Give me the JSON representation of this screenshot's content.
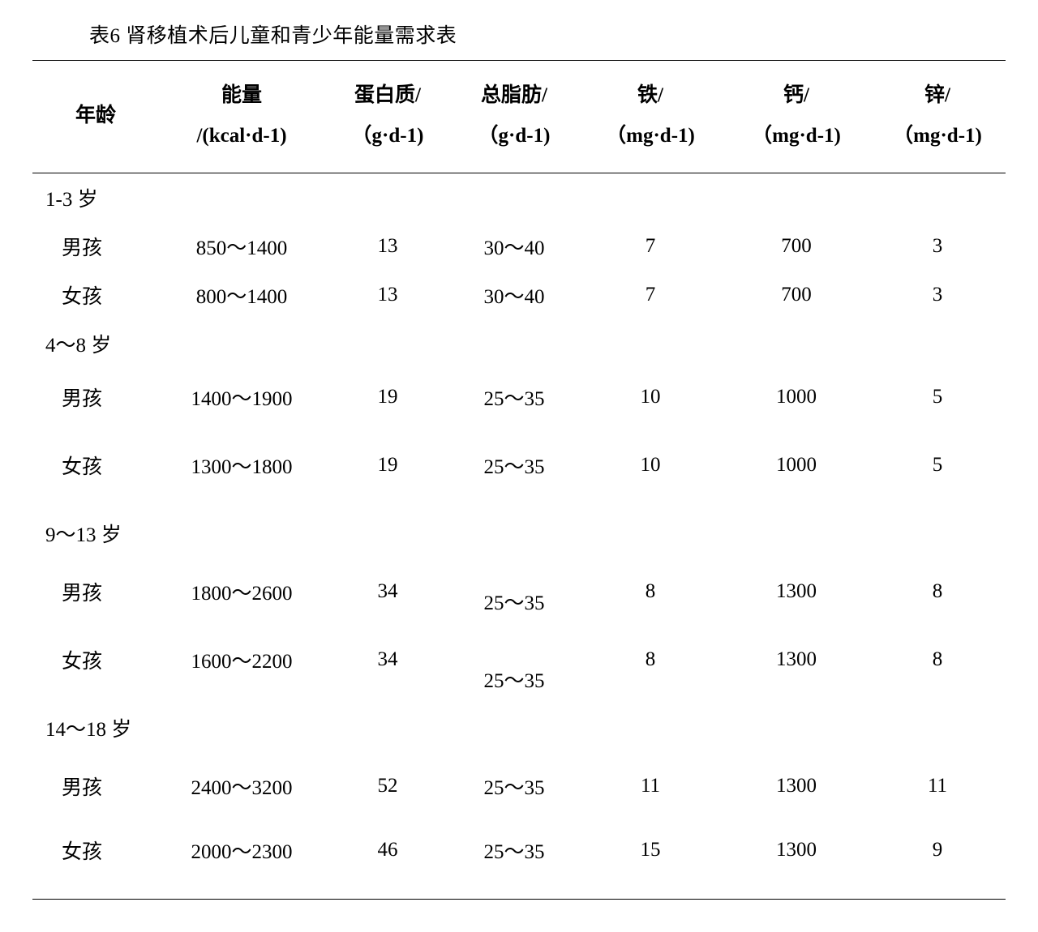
{
  "caption": "表6  肾移植术后儿童和青少年能量需求表",
  "columns": [
    {
      "line1": "年龄",
      "line2": "",
      "class": "c-age"
    },
    {
      "line1": "能量",
      "line2": "/(kcal·d-1)",
      "class": "c-energy"
    },
    {
      "line1": "蛋白质/",
      "line2": "（g·d-1)",
      "class": "c-prot"
    },
    {
      "line1": "总脂肪/",
      "line2": "（g·d-1)",
      "class": "c-fat"
    },
    {
      "line1": "铁/",
      "line2": "（mg·d-1)",
      "class": "c-fe"
    },
    {
      "line1": "钙/",
      "line2": "（mg·d-1)",
      "class": "c-ca"
    },
    {
      "line1": "锌/",
      "line2": "（mg·d-1)",
      "class": "c-zn"
    }
  ],
  "groups": [
    {
      "label": "1-3 岁",
      "groupRowClass": "",
      "rows": [
        {
          "age": "男孩",
          "energy": "850～1400",
          "protein": "13",
          "fat": "30～40",
          "fe": "7",
          "ca": "700",
          "zn": "3",
          "rowClass": "",
          "fatClass": ""
        },
        {
          "age": "女孩",
          "energy": "800～1400",
          "protein": "13",
          "fat": "30～40",
          "fe": "7",
          "ca": "700",
          "zn": "3",
          "rowClass": "",
          "fatClass": ""
        }
      ]
    },
    {
      "label": "4～8 岁",
      "groupRowClass": "",
      "rows": [
        {
          "age": "男孩",
          "energy": "1400～1900",
          "protein": "19",
          "fat": "25～35",
          "fe": "10",
          "ca": "1000",
          "zn": "5",
          "rowClass": "pad-s",
          "fatClass": ""
        },
        {
          "age": "女孩",
          "energy": "1300～1800",
          "protein": "19",
          "fat": "25～35",
          "fe": "10",
          "ca": "1000",
          "zn": "5",
          "rowClass": "pad-m",
          "fatClass": ""
        }
      ]
    },
    {
      "label": "9～13 岁",
      "groupRowClass": "pad-s",
      "rows": [
        {
          "age": "男孩",
          "energy": "1800～2600",
          "protein": "34",
          "fat": "25～35",
          "fe": "8",
          "ca": "1300",
          "zn": "8",
          "rowClass": "pad-s",
          "fatClass": "fat-low"
        },
        {
          "age": "女孩",
          "energy": "1600～2200",
          "protein": "34",
          "fat": "25～35",
          "fe": "8",
          "ca": "1300",
          "zn": "8",
          "rowClass": "pad-m",
          "fatClass": "fat-low"
        }
      ]
    },
    {
      "label": "14～18 岁",
      "groupRowClass": "pad-s",
      "rows": [
        {
          "age": "男孩",
          "energy": "2400～3200",
          "protein": "52",
          "fat": "25～35",
          "fe": "11",
          "ca": "1300",
          "zn": "11",
          "rowClass": "pad-s",
          "fatClass": ""
        },
        {
          "age": "女孩",
          "energy": "2000～2300",
          "protein": "46",
          "fat": "25～35",
          "fe": "15",
          "ca": "1300",
          "zn": "9",
          "rowClass": "pad-l last",
          "fatClass": ""
        }
      ]
    }
  ]
}
